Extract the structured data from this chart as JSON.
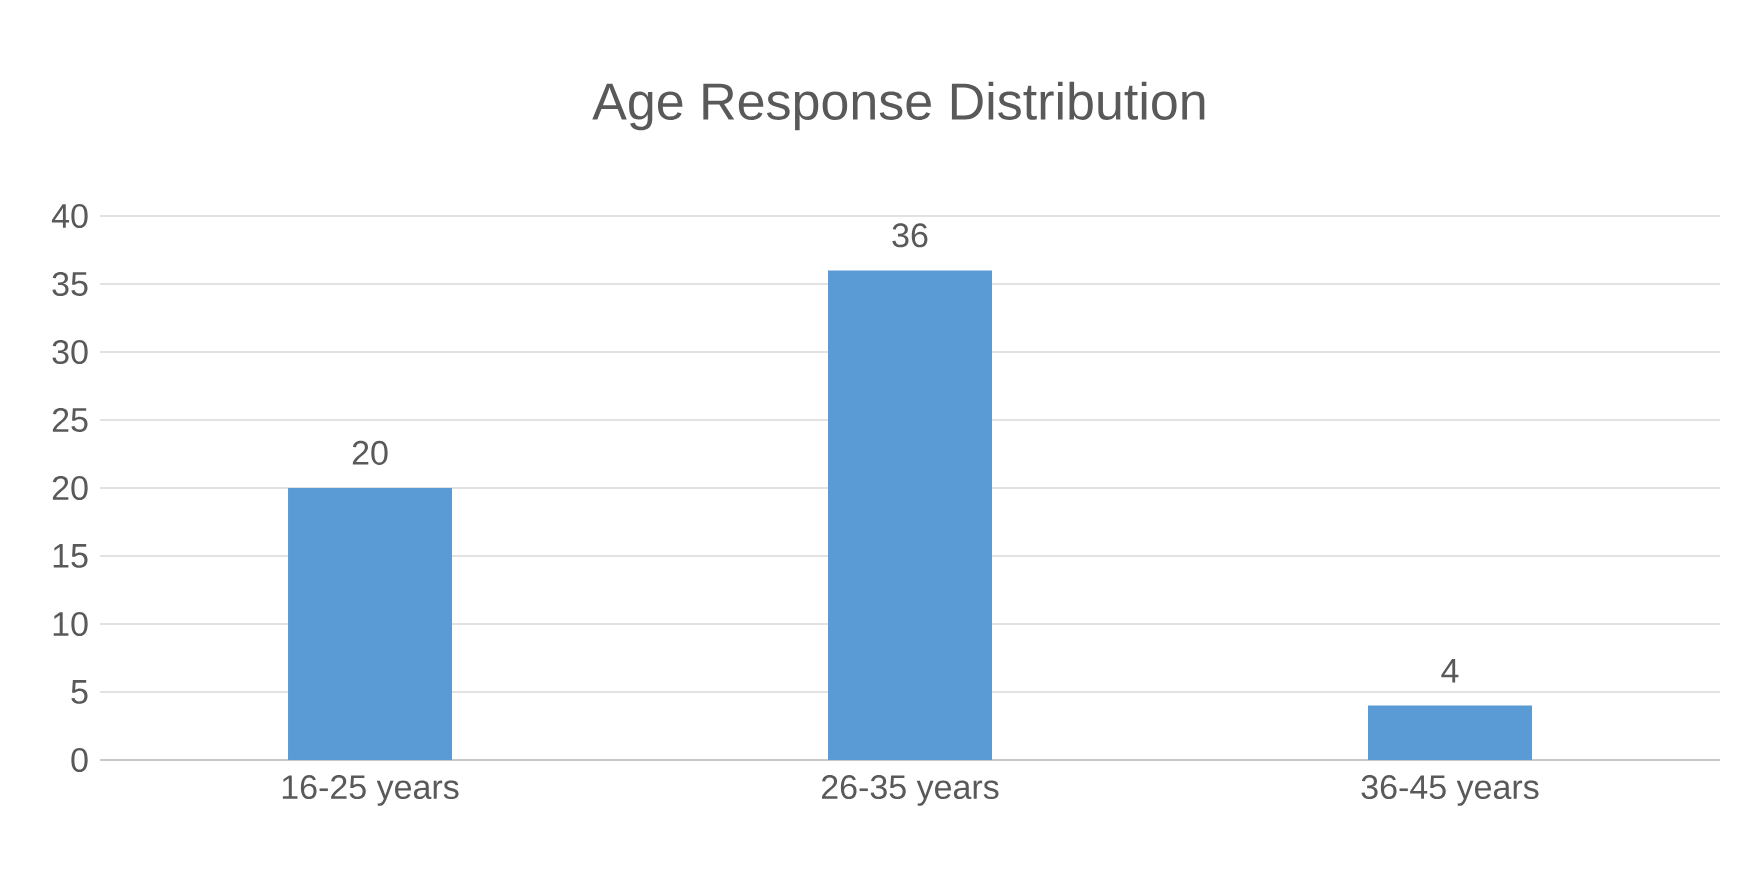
{
  "chart_data": {
    "type": "bar",
    "title": "Age Response Distribution",
    "categories": [
      "16-25 years",
      "26-35 years",
      "36-45 years"
    ],
    "values": [
      20,
      36,
      4
    ],
    "color": "#5b9bd5",
    "ylim": [
      0,
      40
    ],
    "yticks": [
      0,
      5,
      10,
      15,
      20,
      25,
      30,
      35,
      40
    ],
    "grid": "y",
    "data_labels": true
  }
}
